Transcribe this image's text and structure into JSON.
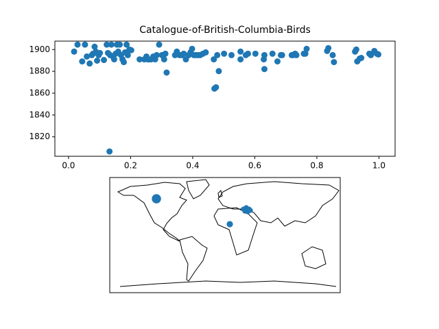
{
  "chart_data": [
    {
      "type": "scatter",
      "title": "Catalogue-of-British-Columbia-Birds",
      "color": "#1f77b4",
      "x": [
        0.018,
        0.029,
        0.044,
        0.053,
        0.059,
        0.068,
        0.075,
        0.079,
        0.084,
        0.088,
        0.092,
        0.097,
        0.101,
        0.114,
        0.123,
        0.127,
        0.134,
        0.138,
        0.143,
        0.147,
        0.152,
        0.156,
        0.16,
        0.165,
        0.169,
        0.174,
        0.178,
        0.182,
        0.187,
        0.191,
        0.196,
        0.202,
        0.229,
        0.244,
        0.251,
        0.255,
        0.259,
        0.266,
        0.273,
        0.279,
        0.284,
        0.292,
        0.301,
        0.308,
        0.312,
        0.316,
        0.343,
        0.349,
        0.358,
        0.365,
        0.371,
        0.378,
        0.387,
        0.393,
        0.398,
        0.404,
        0.411,
        0.418,
        0.424,
        0.433,
        0.442,
        0.468,
        0.47,
        0.475,
        0.479,
        0.484,
        0.501,
        0.525,
        0.554,
        0.554,
        0.571,
        0.578,
        0.602,
        0.629,
        0.631,
        0.631,
        0.657,
        0.673,
        0.684,
        0.688,
        0.719,
        0.723,
        0.73,
        0.734,
        0.758,
        0.763,
        0.767,
        0.833,
        0.837,
        0.851,
        0.855,
        0.923,
        0.927,
        0.93,
        0.938,
        0.943,
        0.969,
        0.974,
        0.985,
        0.993,
        0.998,
        0.132
      ],
      "values": [
        1898.1,
        1904.5,
        1889.1,
        1904.5,
        1893.6,
        1887.2,
        1894.9,
        1896.2,
        1902.6,
        1898.1,
        1889.8,
        1894.9,
        1896.8,
        1890.4,
        1904.5,
        1896.8,
        1894.9,
        1904.5,
        1893.6,
        1891.0,
        1896.2,
        1904.5,
        1898.1,
        1904.5,
        1894.9,
        1891.0,
        1888.5,
        1897.4,
        1904.5,
        1894.9,
        1900.0,
        1899.4,
        1891.0,
        1891.0,
        1893.6,
        1891.0,
        1891.0,
        1891.0,
        1893.6,
        1891.0,
        1894.9,
        1904.5,
        1894.9,
        1891.0,
        1896.2,
        1878.9,
        1894.9,
        1898.1,
        1894.9,
        1894.9,
        1896.2,
        1891.0,
        1894.9,
        1897.4,
        1900.6,
        1894.9,
        1894.9,
        1894.9,
        1894.9,
        1896.2,
        1897.4,
        1891.0,
        1864.2,
        1865.4,
        1894.9,
        1880.2,
        1896.2,
        1894.9,
        1891.0,
        1898.1,
        1894.9,
        1896.2,
        1896.2,
        1891.0,
        1882.1,
        1894.9,
        1896.2,
        1889.1,
        1894.9,
        1894.9,
        1894.9,
        1894.9,
        1896.2,
        1894.9,
        1896.2,
        1896.2,
        1900.6,
        1898.7,
        1901.3,
        1894.9,
        1888.5,
        1898.1,
        1900.0,
        1889.1,
        1891.7,
        1892.3,
        1896.2,
        1894.9,
        1898.7,
        1896.2,
        1895.5,
        1806.6
      ],
      "xlim": [
        -0.044,
        1.052
      ],
      "ylim": [
        1802.2,
        1907.7
      ],
      "xticks": [
        {
          "value": 0,
          "label": "0.0"
        },
        {
          "value": 0.2,
          "label": "0.2"
        },
        {
          "value": 0.4,
          "label": "0.4"
        },
        {
          "value": 0.6,
          "label": "0.6"
        },
        {
          "value": 0.8,
          "label": "0.8"
        },
        {
          "value": 1,
          "label": "1.0"
        }
      ],
      "yticks": [
        1820,
        1840,
        1860,
        1880,
        1900
      ]
    },
    {
      "type": "map",
      "color": "#1f77b4",
      "x": [
        -107.1,
        7.5,
        28.9,
        33.2,
        37.5,
        31.1,
        35.4,
        39.6
      ],
      "values": [
        56.8,
        17.1,
        40.7,
        42.9,
        40.7,
        37.5,
        36.4,
        38.6
      ],
      "sizes": [
        150,
        70,
        45,
        45,
        45,
        45,
        45,
        45
      ],
      "xlim": [
        -180,
        180
      ],
      "ylim": [
        -90,
        90
      ]
    }
  ]
}
